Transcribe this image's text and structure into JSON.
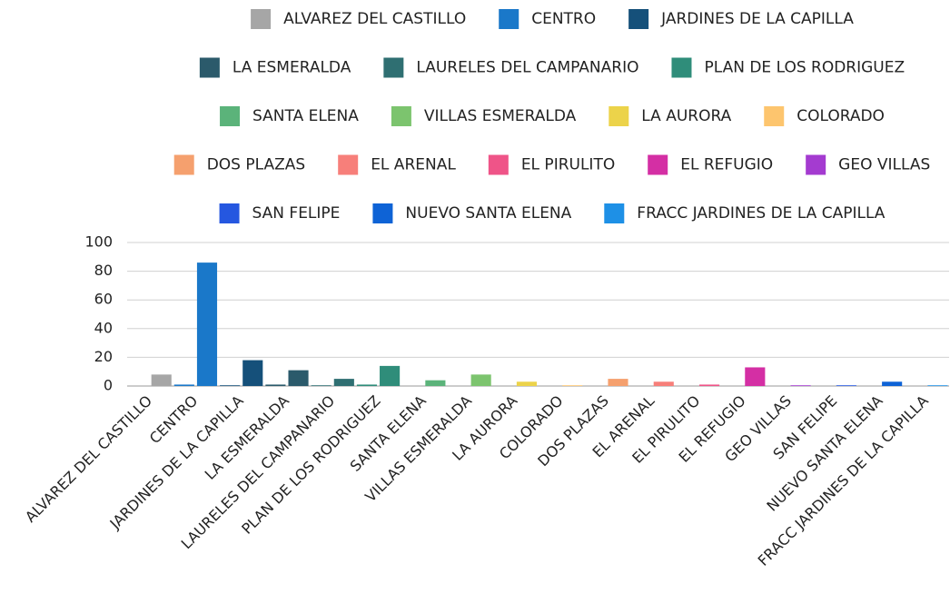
{
  "chart_data": {
    "type": "bar",
    "categories": [
      "ALVAREZ DEL CASTILLO",
      "CENTRO",
      "JARDINES DE LA CAPILLA",
      "LA ESMERALDA",
      "LAURELES DEL CAMPANARIO",
      "PLAN DE LOS RODRIGUEZ",
      "SANTA ELENA",
      "VILLAS ESMERALDA",
      "LA AURORA",
      "COLORADO",
      "DOS PLAZAS",
      "EL ARENAL",
      "EL PIRULITO",
      "EL REFUGIO",
      "GEO VILLAS",
      "SAN FELIPE",
      "NUEVO SANTA ELENA",
      "FRACC JARDINES DE LA CAPILLA"
    ],
    "colors": [
      "#a6a6a6",
      "#1a78c9",
      "#15507a",
      "#2b5a6b",
      "#2f6f72",
      "#2f8d7a",
      "#5bb37a",
      "#7cc46e",
      "#ecd34a",
      "#fdc56e",
      "#f5a06e",
      "#f77f7a",
      "#ef5488",
      "#d42fa4",
      "#a43bd0",
      "#2557e0",
      "#0e63d6",
      "#1e90e6"
    ],
    "series": [
      {
        "values": [
          null,
          1,
          0.5,
          1,
          0.5,
          1,
          null,
          null,
          null,
          null,
          null,
          null,
          null,
          null,
          null,
          null,
          null,
          null
        ]
      },
      {
        "values": [
          8,
          86,
          18,
          11,
          5,
          14,
          4,
          8,
          3,
          0.5,
          5,
          3,
          1,
          13,
          0.5,
          0.5,
          3,
          0.5
        ]
      }
    ],
    "ylim": [
      0,
      100
    ],
    "yticks": [
      0,
      20,
      40,
      60,
      80,
      100
    ],
    "grid": true,
    "legend": "top"
  }
}
